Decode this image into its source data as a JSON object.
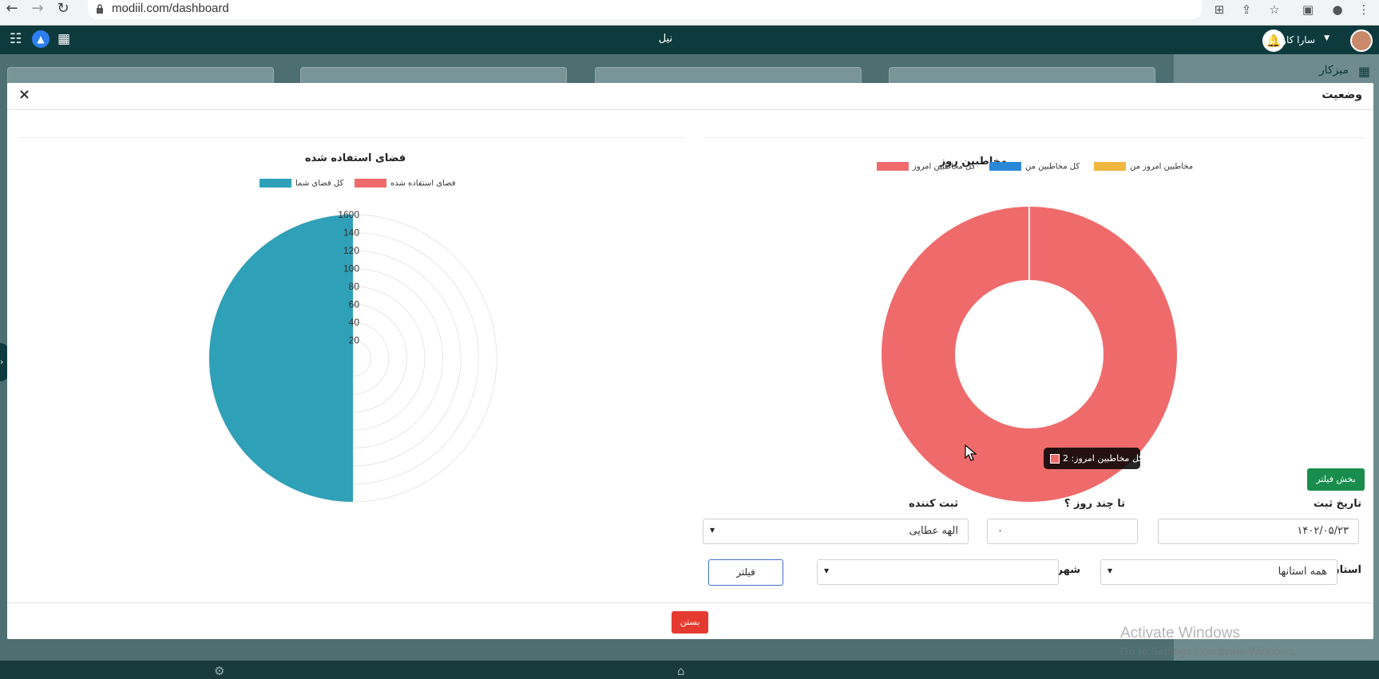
{
  "browser": {
    "url": "modiil.com/dashboard"
  },
  "app": {
    "title": "نیل",
    "user_name": "سارا کاویانی"
  },
  "background": {
    "sidebar_label": "میزکار"
  },
  "modal": {
    "title": "وضعیت",
    "close_symbol": "×",
    "close_button_label": "بستن"
  },
  "donut_chart": {
    "title": "مخاطبین روز",
    "tooltip_label": "کل مخاطبین امروز: 2"
  },
  "polar_chart": {
    "title": "فضای استفاده شده"
  },
  "chart_data": [
    {
      "type": "pie",
      "subtype": "doughnut",
      "title": "مخاطبین روز",
      "legend": [
        "مخاطبین امروز من",
        "کل مخاطبین من",
        "کل مخاطبین امروز"
      ],
      "colors": [
        "#efb640",
        "#2b88d9",
        "#ef6b6b"
      ],
      "values": [
        0,
        0,
        2
      ],
      "legend_position": "top"
    },
    {
      "type": "polarArea",
      "title": "فضای استفاده شده",
      "legend": [
        "فضای استفاده شده",
        "کل فضای شما"
      ],
      "colors": [
        "#ef6b6b",
        "#2ea0b8"
      ],
      "values": [
        0,
        1600
      ],
      "r_ticks": [
        "1600",
        "140",
        "120",
        "100",
        "80",
        "60",
        "40",
        "20"
      ],
      "legend_position": "top"
    }
  ],
  "filters": {
    "section_button": "بخش فیلتر",
    "date_label": "تاریخ ثبت",
    "date_value": "۱۴۰۲/۰۵/۲۳",
    "days_label": "تا چند روز ؟",
    "days_value": "۰",
    "registrar_label": "ثبت کننده",
    "registrar_value": "الهه عطایی",
    "province_label": "استان",
    "province_value": "همه استانها",
    "city_label": "شهر",
    "city_value": "",
    "filter_button": "فیلتر"
  },
  "watermark": {
    "line1": "Activate Windows",
    "line2": "Go to Settings to activate Windows."
  }
}
